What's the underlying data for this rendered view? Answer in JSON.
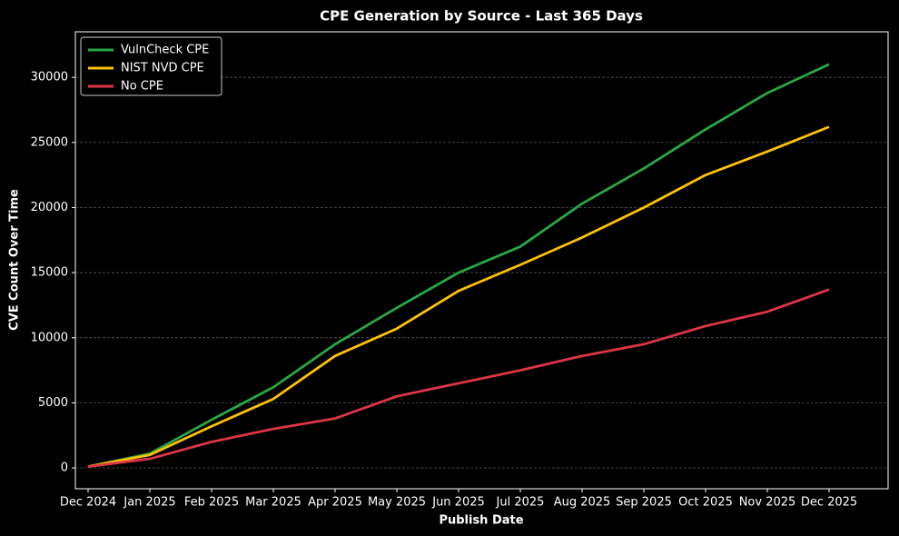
{
  "chart_data": {
    "type": "line",
    "title": "CPE Generation by Source - Last 365 Days",
    "x_label": "Publish Date",
    "y_label": "CVE Count Over Time",
    "x": [
      "2024-12",
      "2025-01",
      "2025-02",
      "2025-03",
      "2025-04",
      "2025-05",
      "2025-06",
      "2025-07",
      "2025-08",
      "2025-09",
      "2025-10",
      "2025-11",
      "2025-12"
    ],
    "xticks": [
      {
        "value": "2024-12",
        "label": "Dec 2024"
      },
      {
        "value": "2025-01",
        "label": "Jan 2025"
      },
      {
        "value": "2025-02",
        "label": "Feb 2025"
      },
      {
        "value": "2025-03",
        "label": "Mar 2025"
      },
      {
        "value": "2025-04",
        "label": "Apr 2025"
      },
      {
        "value": "2025-05",
        "label": "May 2025"
      },
      {
        "value": "2025-06",
        "label": "Jun 2025"
      },
      {
        "value": "2025-07",
        "label": "Jul 2025"
      },
      {
        "value": "2025-08",
        "label": "Aug 2025"
      },
      {
        "value": "2025-09",
        "label": "Sep 2025"
      },
      {
        "value": "2025-10",
        "label": "Oct 2025"
      },
      {
        "value": "2025-11",
        "label": "Nov 2025"
      },
      {
        "value": "2025-12",
        "label": "Dec 2025"
      }
    ],
    "ylim": [
      -1600,
      33500
    ],
    "yticks": [
      0,
      5000,
      10000,
      15000,
      20000,
      25000,
      30000
    ],
    "grid": true,
    "legend": "upper-left",
    "series": [
      {
        "name": "VulnCheck CPE",
        "color": "#28a745",
        "values": [
          100,
          1100,
          3700,
          6200,
          9500,
          12300,
          15000,
          17000,
          20300,
          23000,
          26000,
          28800,
          31000
        ]
      },
      {
        "name": "NIST NVD CPE",
        "color": "#ffc107",
        "values": [
          100,
          1000,
          3200,
          5300,
          8600,
          10700,
          13600,
          15600,
          17700,
          20000,
          22500,
          24300,
          26200
        ]
      },
      {
        "name": "No CPE",
        "color": "#dc3545",
        "values": [
          100,
          700,
          2000,
          3000,
          3800,
          5500,
          6500,
          7500,
          8600,
          9500,
          10900,
          12000,
          13700
        ]
      }
    ]
  }
}
